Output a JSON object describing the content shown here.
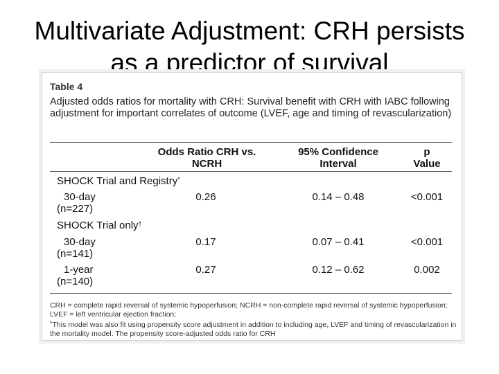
{
  "slide": {
    "title_line1": "Multivariate Adjustment: CRH persists",
    "title_line2": "as a predictor of survival"
  },
  "table": {
    "label": "Table 4",
    "caption": "Adjusted odds ratios for mortality with CRH: Survival benefit with CRH with IABC following adjustment for important correlates of outcome (LVEF, age and timing of revascularization)",
    "headers": {
      "odds_ratio_line1": "Odds Ratio CRH vs.",
      "odds_ratio_line2": "NCRH",
      "ci_line1": "95% Confidence",
      "ci_line2": "Interval",
      "p_line1": "p",
      "p_line2": "Value"
    },
    "group1": {
      "label": "SHOCK Trial and Registry",
      "marker": "*",
      "row1": {
        "label": "30-day",
        "n": "(n=227)",
        "odds_ratio": "0.26",
        "ci": "0.14 – 0.48",
        "p": "<0.001"
      }
    },
    "group2": {
      "label": "SHOCK Trial only",
      "marker": "†",
      "row1": {
        "label": "30-day",
        "n": "(n=141)",
        "odds_ratio": "0.17",
        "ci": "0.07 – 0.41",
        "p": "<0.001"
      },
      "row2": {
        "label": "1-year",
        "n": "(n=140)",
        "odds_ratio": "0.27",
        "ci": "0.12 – 0.62",
        "p": "0.002"
      }
    },
    "footnotes": {
      "abbrev": "CRH = complete rapid reversal of systemic hypoperfusion; NCRH = non-complete rapid reversal of systemic hypoperfusion; LVEF = left ventricular ejection fraction;",
      "star_marker": "*",
      "star_text": "This model was also fit using propensity score adjustment in addition to including age, LVEF and timing of revascularization in the mortality model. The propensity score-adjusted odds ratio for CRH"
    }
  }
}
